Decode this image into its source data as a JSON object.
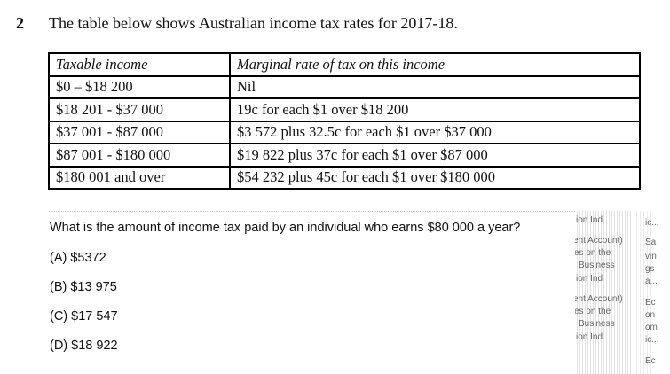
{
  "question": {
    "number": "2",
    "intro": "The table below shows Australian income tax rates for 2017-18.",
    "table": {
      "headers": [
        "Taxable income",
        "Marginal rate of tax on this income"
      ],
      "rows": [
        [
          "$0 – $18 200",
          "Nil"
        ],
        [
          "$18 201 - $37 000",
          "19c for each $1 over $18 200"
        ],
        [
          "$37 001 - $87 000",
          "$3 572 plus 32.5c for each $1 over $37 000"
        ],
        [
          "$87 001 - $180 000",
          "$19 822 plus 37c for each $1 over $87 000"
        ],
        [
          "$180 001 and over",
          "$54 232 plus 45c for each $1 over $180 000"
        ]
      ]
    },
    "prompt": "What is the amount of income tax paid by an individual who earns $80 000 a year?",
    "options": [
      "(A) $5372",
      "(B) $13 975",
      "(C) $17 547",
      "(D) $18 922"
    ]
  },
  "sidebar": {
    "fragments_left": [
      "ion Ind",
      "ent Account)",
      "es on the",
      "Business",
      "ion Ind",
      "ent Account)",
      "es on the",
      "Business",
      "ion Ind"
    ],
    "fragments_right": [
      "ic...",
      "Sa",
      "vin",
      "gs",
      "a...",
      "Ec",
      "on",
      "om",
      "ic...",
      "Ec"
    ]
  }
}
